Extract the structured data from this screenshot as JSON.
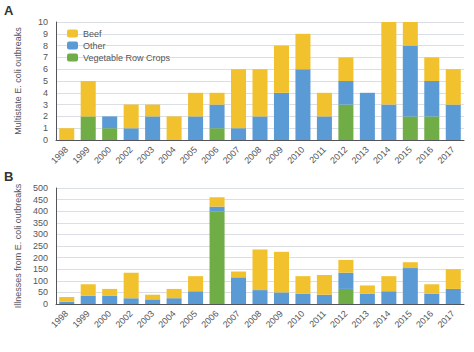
{
  "chart_data": [
    {
      "type": "bar",
      "stacked": true,
      "annotations": [
        "A"
      ],
      "ylabel": "Multistate E. coli outbreaks",
      "categories": [
        "1998",
        "1999",
        "2000",
        "2002",
        "2003",
        "2004",
        "2005",
        "2006",
        "2007",
        "2008",
        "2009",
        "2010",
        "2011",
        "2012",
        "2013",
        "2014",
        "2015",
        "2016",
        "2017"
      ],
      "series": [
        {
          "name": "Vegetable Row Crops",
          "color": "#70AD47",
          "values": [
            0,
            2,
            1,
            0,
            0,
            0,
            0,
            1,
            0,
            0,
            0,
            0,
            0,
            3,
            0,
            0,
            2,
            2,
            0
          ]
        },
        {
          "name": "Other",
          "color": "#5B9BD5",
          "values": [
            0,
            0,
            1,
            1,
            2,
            0,
            2,
            2,
            1,
            2,
            4,
            6,
            2,
            2,
            4,
            3,
            6,
            3,
            3
          ]
        },
        {
          "name": "Beef",
          "color": "#F2C12E",
          "values": [
            1,
            3,
            0,
            2,
            1,
            2,
            2,
            1,
            5,
            4,
            4,
            3,
            2,
            2,
            0,
            7,
            2,
            2,
            3
          ]
        }
      ],
      "ylim": [
        0,
        10
      ],
      "yticks": [
        0,
        1,
        2,
        3,
        4,
        5,
        6,
        7,
        8,
        9,
        10
      ],
      "grid": true,
      "legend": "upper left"
    },
    {
      "type": "bar",
      "stacked": true,
      "annotations": [
        "B"
      ],
      "ylabel": "Illnesses from E. coli outbreaks",
      "categories": [
        "1998",
        "1999",
        "2000",
        "2002",
        "2003",
        "2004",
        "2005",
        "2006",
        "2007",
        "2008",
        "2009",
        "2010",
        "2011",
        "2012",
        "2013",
        "2014",
        "2015",
        "2016",
        "2017"
      ],
      "series": [
        {
          "color": "#70AD47",
          "values": [
            0,
            0,
            0,
            0,
            0,
            0,
            0,
            400,
            0,
            0,
            0,
            0,
            0,
            65,
            0,
            0,
            0,
            0,
            0
          ]
        },
        {
          "color": "#5B9BD5",
          "values": [
            10,
            35,
            35,
            25,
            20,
            25,
            55,
            20,
            115,
            60,
            50,
            45,
            40,
            70,
            45,
            55,
            155,
            45,
            65
          ]
        },
        {
          "color": "#F2C12E",
          "values": [
            20,
            50,
            30,
            110,
            20,
            40,
            65,
            40,
            25,
            175,
            175,
            75,
            85,
            55,
            35,
            65,
            25,
            40,
            85
          ]
        }
      ],
      "ylim": [
        0,
        500
      ],
      "yticks": [
        0,
        50,
        100,
        150,
        200,
        250,
        300,
        350,
        400,
        450,
        500
      ],
      "grid": true
    }
  ]
}
